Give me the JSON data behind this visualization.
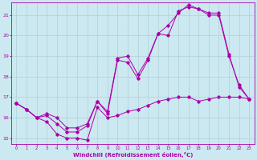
{
  "xlabel": "Windchill (Refroidissement éolien,°C)",
  "background_color": "#cce8f0",
  "grid_color": "#b0d0d8",
  "line_color": "#aa00aa",
  "xlim": [
    -0.5,
    23.5
  ],
  "ylim": [
    14.7,
    21.6
  ],
  "yticks": [
    15,
    16,
    17,
    18,
    19,
    20,
    21
  ],
  "xticks": [
    0,
    1,
    2,
    3,
    4,
    5,
    6,
    7,
    8,
    9,
    10,
    11,
    12,
    13,
    14,
    15,
    16,
    17,
    18,
    19,
    20,
    21,
    22,
    23
  ],
  "line1_x": [
    0,
    1,
    2,
    3,
    4,
    5,
    6,
    7,
    8,
    9,
    10,
    11,
    12,
    13,
    14,
    15,
    16,
    17,
    18,
    19,
    20,
    21,
    22,
    23
  ],
  "line1_y": [
    16.7,
    16.4,
    16.0,
    15.8,
    15.2,
    15.0,
    15.0,
    14.9,
    16.5,
    16.0,
    16.1,
    16.3,
    16.4,
    16.6,
    16.8,
    16.9,
    17.0,
    17.0,
    16.8,
    16.9,
    17.0,
    17.0,
    17.0,
    16.9
  ],
  "line2_x": [
    0,
    1,
    2,
    3,
    4,
    5,
    6,
    7,
    8,
    9,
    10,
    11,
    12,
    13,
    14,
    15,
    16,
    17,
    18,
    19,
    20,
    21,
    22,
    23
  ],
  "line2_y": [
    16.7,
    16.4,
    16.0,
    16.1,
    15.7,
    15.3,
    15.3,
    15.6,
    16.8,
    16.2,
    18.8,
    18.7,
    17.9,
    18.8,
    20.1,
    20.5,
    21.1,
    21.5,
    21.3,
    21.1,
    21.1,
    19.1,
    17.5,
    16.9
  ],
  "line3_x": [
    0,
    1,
    2,
    3,
    4,
    5,
    6,
    7,
    8,
    9,
    10,
    11,
    12,
    13,
    14,
    15,
    16,
    17,
    18,
    19,
    20,
    21,
    22,
    23
  ],
  "line3_y": [
    16.7,
    16.4,
    16.0,
    16.2,
    16.0,
    15.5,
    15.5,
    15.7,
    16.8,
    16.3,
    18.9,
    19.0,
    18.1,
    18.9,
    20.1,
    20.0,
    21.2,
    21.4,
    21.3,
    21.0,
    21.0,
    19.0,
    17.6,
    16.9
  ]
}
